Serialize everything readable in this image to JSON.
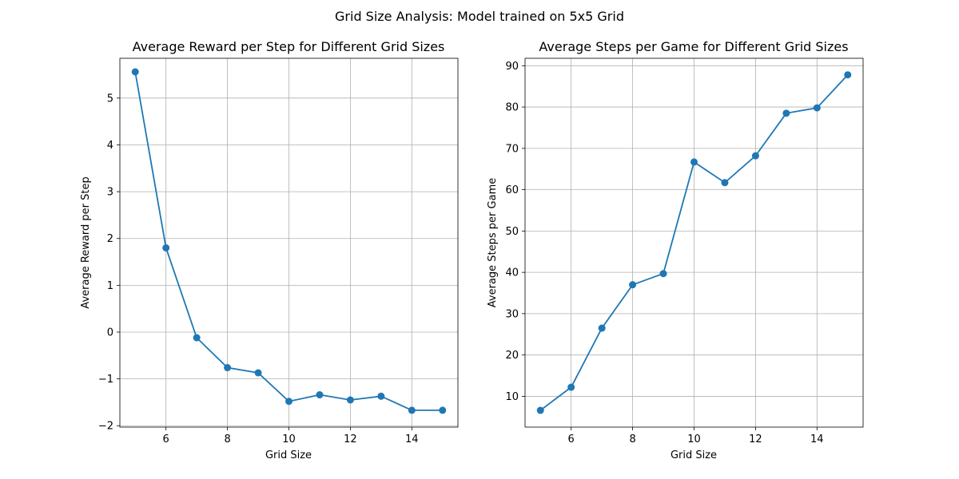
{
  "figure": {
    "title": "Grid Size Analysis: Model trained on 5x5 Grid"
  },
  "colors": {
    "series": "#1f77b4"
  },
  "chart_data": [
    {
      "type": "line",
      "title": "Average Reward per Step for Different Grid Sizes",
      "xlabel": "Grid Size",
      "ylabel": "Average Reward per Step",
      "x": [
        5,
        6,
        7,
        8,
        9,
        10,
        11,
        12,
        13,
        14,
        15
      ],
      "values": [
        5.56,
        1.8,
        -0.12,
        -0.76,
        -0.87,
        -1.48,
        -1.34,
        -1.45,
        -1.37,
        -1.67,
        -1.67
      ],
      "xlim": [
        4.5,
        15.5
      ],
      "ylim": [
        -2.03,
        5.85
      ],
      "xticks": [
        6,
        8,
        10,
        12,
        14
      ],
      "yticks": [
        -2,
        -1,
        0,
        1,
        2,
        3,
        4,
        5
      ],
      "ytick_labels": [
        "−2",
        "−1",
        "0",
        "1",
        "2",
        "3",
        "4",
        "5"
      ],
      "grid": true,
      "marker": "circle"
    },
    {
      "type": "line",
      "title": "Average Steps per Game for Different Grid Sizes",
      "xlabel": "Grid Size",
      "ylabel": "Average Steps per Game",
      "x": [
        5,
        6,
        7,
        8,
        9,
        10,
        11,
        12,
        13,
        14,
        15
      ],
      "values": [
        6.6,
        12.2,
        26.5,
        37.0,
        39.7,
        66.7,
        61.7,
        68.2,
        78.5,
        79.8,
        87.8
      ],
      "xlim": [
        4.5,
        15.5
      ],
      "ylim": [
        2.55,
        91.8
      ],
      "xticks": [
        6,
        8,
        10,
        12,
        14
      ],
      "yticks": [
        10,
        20,
        30,
        40,
        50,
        60,
        70,
        80,
        90
      ],
      "ytick_labels": [
        "10",
        "20",
        "30",
        "40",
        "50",
        "60",
        "70",
        "80",
        "90"
      ],
      "grid": true,
      "marker": "circle"
    }
  ]
}
